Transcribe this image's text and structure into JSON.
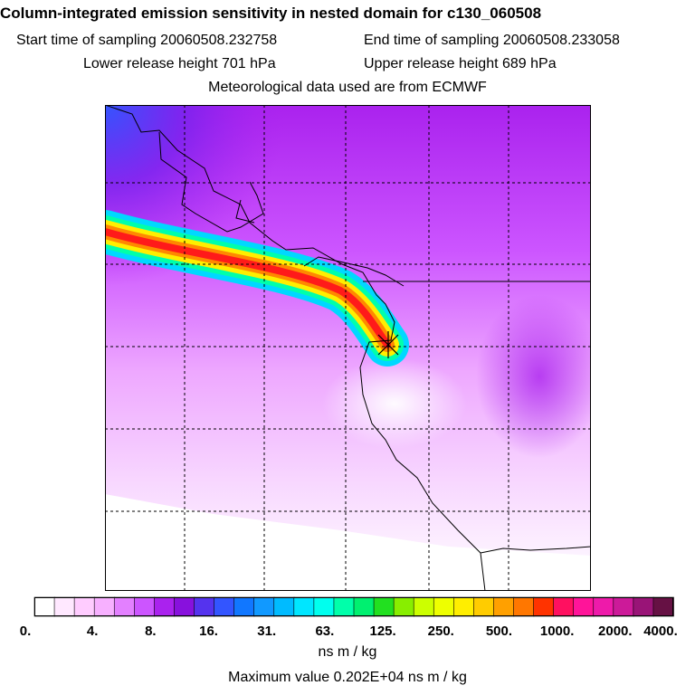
{
  "header": {
    "title": "Column-integrated emission sensitivity in nested domain for c130_060508",
    "start_label": "Start time of sampling 20060508.232758",
    "end_label": "End time of sampling 20060508.233058",
    "lower_label": "Lower release height  701 hPa",
    "upper_label": "Upper release height  689 hPa",
    "met_label": "Meteorological data used are from ECMWF"
  },
  "chart_data": {
    "type": "heatmap",
    "title": "Column-integrated emission sensitivity in nested domain for c130_060508",
    "start_time": "20060508.232758",
    "end_time": "20060508.233058",
    "lower_release_height_hPa": 701,
    "upper_release_height_hPa": 689,
    "met_source": "ECMWF",
    "grid": true,
    "colorbar": {
      "labels": [
        "0.",
        "4.",
        "8.",
        "16.",
        "31.",
        "63.",
        "125.",
        "250.",
        "500.",
        "1000.",
        "2000.",
        "4000."
      ],
      "colors": [
        "#ffffff",
        "#ffe8ff",
        "#ffccff",
        "#f7b0ff",
        "#e380ff",
        "#cc55ff",
        "#aa22ee",
        "#8811dd",
        "#5533ee",
        "#3355ff",
        "#1177ff",
        "#1199ff",
        "#00bbff",
        "#00e6ff",
        "#00ffee",
        "#00ffaa",
        "#00f070",
        "#22e020",
        "#88ee00",
        "#ccff00",
        "#eeff00",
        "#ffee00",
        "#ffcc00",
        "#ffa000",
        "#ff7700",
        "#ff3300",
        "#ff1060",
        "#ff1499",
        "#ee1aaa",
        "#cc1a99",
        "#991477",
        "#661144"
      ],
      "unit": "ns m / kg"
    },
    "max_value_label": "Maximum value  0.202E+04 ns m / kg",
    "plume": {
      "description": "high-sensitivity band from western edge to release point",
      "peak_value": 2020
    }
  },
  "colors": {
    "background": "#ffffff",
    "grid": "#000000",
    "coast": "#000000"
  }
}
